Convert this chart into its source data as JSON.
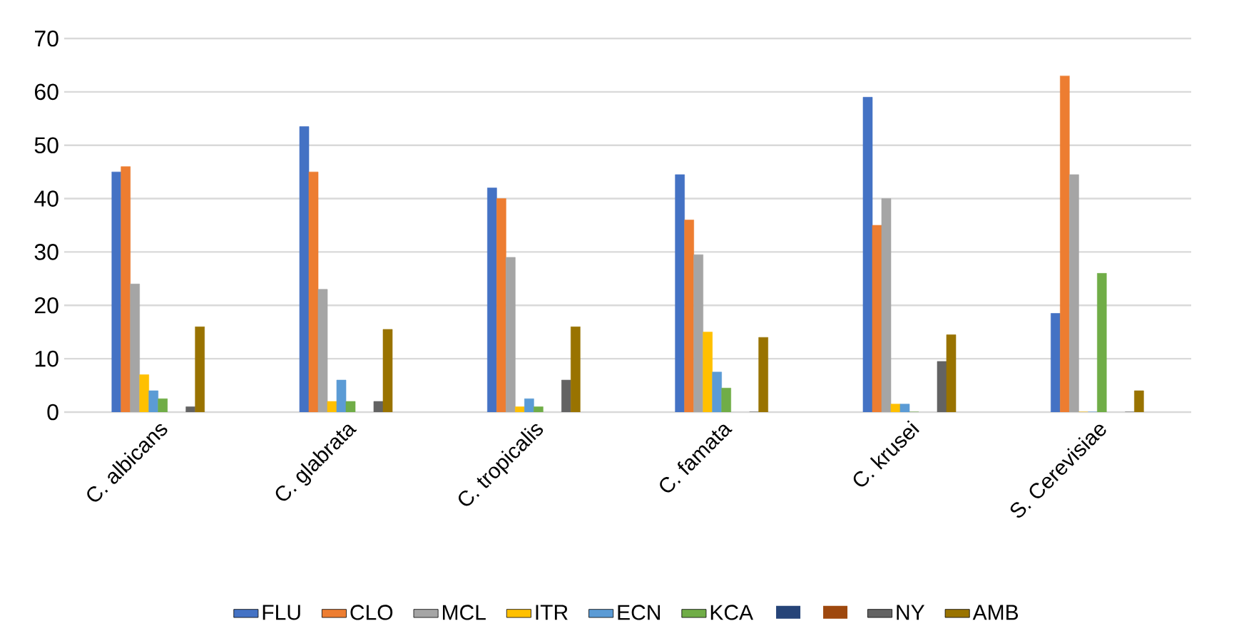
{
  "chart_data": {
    "type": "bar",
    "categories": [
      "C. albicans",
      "C. glabrata",
      "C. tropicalis",
      "C. famata",
      "C. krusei",
      "S. Cerevisiae"
    ],
    "series": [
      {
        "name": "FLU",
        "color": "#4472c4",
        "values": [
          45,
          53.5,
          42,
          44.5,
          59,
          18.5
        ]
      },
      {
        "name": "CLO",
        "color": "#ed7d31",
        "values": [
          46,
          45,
          40,
          36,
          35,
          63
        ]
      },
      {
        "name": "MCL",
        "color": "#a5a5a5",
        "values": [
          24,
          23,
          29,
          29.5,
          40,
          44.5
        ]
      },
      {
        "name": "ITR",
        "color": "#ffc000",
        "values": [
          7,
          2,
          1,
          15,
          1.5,
          0
        ]
      },
      {
        "name": "ECN",
        "color": "#5b9bd5",
        "values": [
          4,
          6,
          2.5,
          7.5,
          1.5,
          0
        ]
      },
      {
        "name": "KCA",
        "color": "#70ad47",
        "values": [
          2.5,
          2,
          1,
          4.5,
          0,
          26
        ]
      },
      {
        "color": "#264478",
        "values": [
          null,
          null,
          null,
          null,
          null,
          null
        ]
      },
      {
        "color": "#9e480e",
        "values": [
          null,
          null,
          null,
          null,
          null,
          null
        ]
      },
      {
        "name": "NY",
        "color": "#636363",
        "values": [
          1,
          2,
          6,
          0,
          9.5,
          0
        ]
      },
      {
        "name": "AMB",
        "color": "#997300",
        "values": [
          16,
          15.5,
          16,
          14,
          14.5,
          4
        ]
      }
    ],
    "ylim": [
      0,
      70
    ],
    "yticks": [
      0,
      10,
      20,
      30,
      40,
      50,
      60,
      70
    ],
    "grid": "y",
    "legend": "bottom"
  }
}
